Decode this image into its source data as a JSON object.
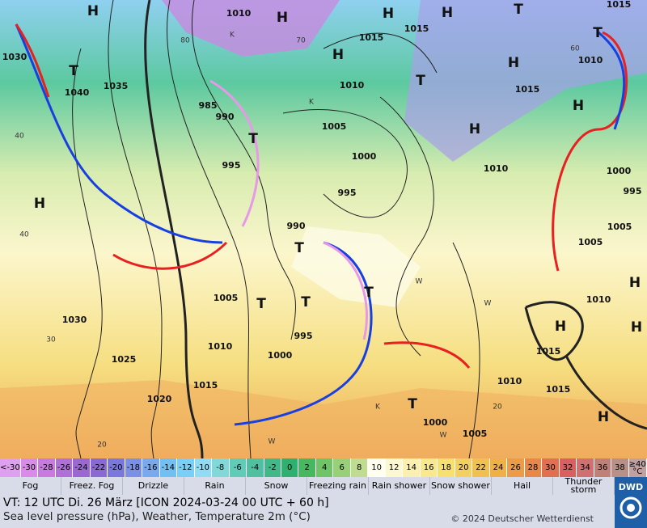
{
  "map": {
    "pressure_labels": [
      "1010",
      "1015",
      "1030",
      "1035",
      "1040",
      "985",
      "990",
      "995",
      "1015",
      "1015",
      "1010",
      "1005",
      "1000",
      "995",
      "990",
      "1010",
      "1015",
      "1010",
      "1000",
      "995",
      "1005",
      "1005",
      "1010",
      "1015",
      "1015",
      "1005",
      "1030",
      "995",
      "1010",
      "1000",
      "1025",
      "1020",
      "1015",
      "1010",
      "1000",
      "1005"
    ],
    "temperature_labels": [
      "80",
      "70",
      "60",
      "40",
      "40",
      "30",
      "20",
      "20"
    ],
    "centers": [
      "H",
      "H",
      "H",
      "H",
      "H",
      "H",
      "H",
      "H",
      "H",
      "H",
      "H",
      "H",
      "H",
      "T",
      "T",
      "T",
      "T",
      "T",
      "T",
      "T",
      "T",
      "T",
      "T"
    ],
    "region_letters": [
      "K",
      "K",
      "K",
      "W",
      "W",
      "W",
      "W"
    ]
  },
  "color_scale": {
    "items": [
      {
        "label": "<-30",
        "color": "#e0a0f0"
      },
      {
        "label": "-30",
        "color": "#d98be8"
      },
      {
        "label": "-28",
        "color": "#c87ae0"
      },
      {
        "label": "-26",
        "color": "#b070d8"
      },
      {
        "label": "-24",
        "color": "#9a68d0"
      },
      {
        "label": "-22",
        "color": "#8a6ad2"
      },
      {
        "label": "-20",
        "color": "#7a78dc"
      },
      {
        "label": "-18",
        "color": "#7a90e6"
      },
      {
        "label": "-16",
        "color": "#78a8ee"
      },
      {
        "label": "-14",
        "color": "#70c0f4"
      },
      {
        "label": "-12",
        "color": "#78d0f8"
      },
      {
        "label": "-10",
        "color": "#90dcf4"
      },
      {
        "label": "-8",
        "color": "#80d8d8"
      },
      {
        "label": "-6",
        "color": "#60ccb8"
      },
      {
        "label": "-4",
        "color": "#50c0a0"
      },
      {
        "label": "-2",
        "color": "#40b888"
      },
      {
        "label": "0",
        "color": "#30b070"
      },
      {
        "label": "2",
        "color": "#48b860"
      },
      {
        "label": "4",
        "color": "#70c468"
      },
      {
        "label": "6",
        "color": "#98d078"
      },
      {
        "label": "8",
        "color": "#c0dc90"
      },
      {
        "label": "10",
        "color": "#fffff0"
      },
      {
        "label": "12",
        "color": "#fcf8d0"
      },
      {
        "label": "14",
        "color": "#fcf0b0"
      },
      {
        "label": "16",
        "color": "#f8e890"
      },
      {
        "label": "18",
        "color": "#f8e070"
      },
      {
        "label": "20",
        "color": "#f4d060"
      },
      {
        "label": "22",
        "color": "#f0c050"
      },
      {
        "label": "24",
        "color": "#f0b048"
      },
      {
        "label": "26",
        "color": "#ec9c48"
      },
      {
        "label": "28",
        "color": "#e88848"
      },
      {
        "label": "30",
        "color": "#e07050"
      },
      {
        "label": "32",
        "color": "#d86060"
      },
      {
        "label": "34",
        "color": "#d07070"
      },
      {
        "label": "36",
        "color": "#c08078"
      },
      {
        "label": "38",
        "color": "#b89088"
      },
      {
        "label": "≥40 °C",
        "color": "#c0a0a0"
      }
    ]
  },
  "legend": {
    "items": [
      "Fog",
      "Freez. Fog",
      "Drizzle",
      "Rain",
      "Snow",
      "Freezing rain",
      "Rain shower",
      "Snow shower",
      "Hail",
      "Thunder storm"
    ]
  },
  "footer": {
    "valid_time": "VT: 12 UTC Di.  26 März [ICON 2024-03-24  00 UTC + 60 h]",
    "description": "Sea level pressure (hPa), Weather, Temperature 2m (°C)",
    "copyright": "© 2024 Deutscher Wetterdienst",
    "logo": "DWD"
  }
}
